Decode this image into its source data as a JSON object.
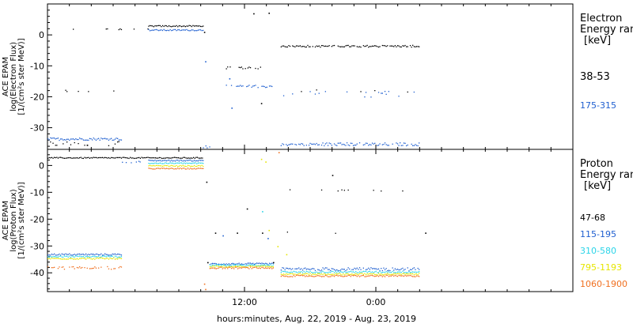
{
  "chart_data": [
    {
      "type": "scatter",
      "panel": "electron",
      "ylabel_lines": [
        "ACE EPAM",
        "log(Electron Flux)",
        "[1/(cm²s ster MeV)]"
      ],
      "ylim": [
        -37,
        10
      ],
      "yticks": [
        0,
        -10,
        -20,
        -30
      ],
      "ytick_labels": [
        "0",
        "-10",
        "-20",
        "-30"
      ],
      "legend": {
        "title_lines": [
          "Electron",
          "Energy ran",
          "[keV]"
        ],
        "entries": [
          {
            "label": "38-53",
            "color": "#000000"
          },
          {
            "label": "175-315",
            "color": "#1f5fd0"
          }
        ]
      },
      "segments": [
        {
          "series": 0,
          "x": [
            0.0,
            9.2
          ],
          "y": 2,
          "density": 0.14,
          "spread": 0.3
        },
        {
          "series": 0,
          "x": [
            0.0,
            6.8
          ],
          "y": -18,
          "density": 0.12,
          "spread": 0.3
        },
        {
          "series": 0,
          "x": [
            0.0,
            6.8
          ],
          "y": -35,
          "density": 0.3,
          "spread": 0.7
        },
        {
          "series": 0,
          "x": [
            9.2,
            14.2
          ],
          "y": 3,
          "density": 1.0,
          "spread": 0.2
        },
        {
          "series": 0,
          "x": [
            16.3,
            19.6
          ],
          "y": -10.5,
          "density": 0.6,
          "spread": 0.3
        },
        {
          "series": 0,
          "x": [
            21.3,
            34.0
          ],
          "y": -3.5,
          "density": 0.9,
          "spread": 0.3
        },
        {
          "series": 0,
          "x": [
            21.3,
            34.0
          ],
          "y": -18,
          "density": 0.08,
          "spread": 0.4
        },
        {
          "series": 1,
          "x": [
            0.0,
            6.8
          ],
          "y": -33.5,
          "density": 1.0,
          "spread": 0.4
        },
        {
          "series": 1,
          "x": [
            9.2,
            14.2
          ],
          "y": 1.7,
          "density": 1.0,
          "spread": 0.2
        },
        {
          "series": 1,
          "x": [
            14.2,
            14.8
          ],
          "y": -36,
          "density": 0.8,
          "spread": 0.4
        },
        {
          "series": 1,
          "x": [
            16.3,
            20.6
          ],
          "y": -16.5,
          "density": 0.7,
          "spread": 0.4
        },
        {
          "series": 1,
          "x": [
            21.3,
            34.0
          ],
          "y": -35.2,
          "density": 0.85,
          "spread": 0.5
        },
        {
          "series": 1,
          "x": [
            21.3,
            34.0
          ],
          "y": -19,
          "density": 0.1,
          "spread": 1.0
        }
      ],
      "points": [
        {
          "series": 0,
          "x": 18.8,
          "y": 7
        },
        {
          "series": 0,
          "x": 20.2,
          "y": 7.2
        },
        {
          "series": 0,
          "x": 19.5,
          "y": -22
        },
        {
          "series": 1,
          "x": 16.6,
          "y": -14
        },
        {
          "series": 1,
          "x": 16.8,
          "y": -23.5
        },
        {
          "series": 1,
          "x": 14.4,
          "y": -8.5
        },
        {
          "series": 0,
          "x": 3.6,
          "y": -35.5
        },
        {
          "series": 0,
          "x": 14.3,
          "y": 1
        }
      ]
    },
    {
      "type": "scatter",
      "panel": "proton",
      "ylabel_lines": [
        "ACE EPAM",
        "log(Proton Flux)",
        "[1/(cm²s ster MeV)]"
      ],
      "ylim": [
        -47,
        6
      ],
      "yticks": [
        0,
        -10,
        -20,
        -30,
        -40
      ],
      "ytick_labels": [
        "0",
        "-10",
        "-20",
        "-30",
        "-40"
      ],
      "legend": {
        "title_lines": [
          "Proton",
          "Energy ran",
          "[keV]"
        ],
        "entries": [
          {
            "label": "47-68",
            "color": "#000000"
          },
          {
            "label": "115-195",
            "color": "#1f5fd0"
          },
          {
            "label": "310-580",
            "color": "#2ad4e8"
          },
          {
            "label": "795-1193",
            "color": "#e6e600"
          },
          {
            "label": "1060-1900",
            "color": "#f07020"
          }
        ]
      },
      "segments": [
        {
          "series": 0,
          "x": [
            0.0,
            14.2
          ],
          "y": 3,
          "density": 1.0,
          "spread": 0.2
        },
        {
          "series": 1,
          "x": [
            0.0,
            6.8
          ],
          "y": -33,
          "density": 1.0,
          "spread": 0.3
        },
        {
          "series": 1,
          "x": [
            6.8,
            9.2
          ],
          "y": 1.5,
          "density": 0.12,
          "spread": 0.3
        },
        {
          "series": 1,
          "x": [
            9.2,
            14.2
          ],
          "y": 2,
          "density": 1.0,
          "spread": 0.2
        },
        {
          "series": 2,
          "x": [
            0.0,
            6.8
          ],
          "y": -33.8,
          "density": 1.0,
          "spread": 0.3
        },
        {
          "series": 2,
          "x": [
            9.2,
            14.2
          ],
          "y": 1,
          "density": 1.0,
          "spread": 0.2
        },
        {
          "series": 3,
          "x": [
            0.0,
            6.8
          ],
          "y": -34.5,
          "density": 1.0,
          "spread": 0.3
        },
        {
          "series": 3,
          "x": [
            9.2,
            14.2
          ],
          "y": 0,
          "density": 1.0,
          "spread": 0.2
        },
        {
          "series": 4,
          "x": [
            0.0,
            6.8
          ],
          "y": -38,
          "density": 0.6,
          "spread": 0.5
        },
        {
          "series": 4,
          "x": [
            9.2,
            14.2
          ],
          "y": -1,
          "density": 1.0,
          "spread": 0.2
        },
        {
          "series": 1,
          "x": [
            14.8,
            20.6
          ],
          "y": -36.5,
          "density": 1.0,
          "spread": 0.3
        },
        {
          "series": 2,
          "x": [
            14.8,
            20.6
          ],
          "y": -37,
          "density": 1.0,
          "spread": 0.3
        },
        {
          "series": 3,
          "x": [
            14.8,
            20.6
          ],
          "y": -37.5,
          "density": 1.0,
          "spread": 0.3
        },
        {
          "series": 4,
          "x": [
            14.8,
            20.6
          ],
          "y": -38,
          "density": 1.0,
          "spread": 0.3
        },
        {
          "series": 1,
          "x": [
            21.3,
            34.0
          ],
          "y": -38.5,
          "density": 0.9,
          "spread": 0.6
        },
        {
          "series": 2,
          "x": [
            21.3,
            34.0
          ],
          "y": -39.5,
          "density": 1.0,
          "spread": 0.3
        },
        {
          "series": 3,
          "x": [
            21.3,
            34.0
          ],
          "y": -40.3,
          "density": 1.0,
          "spread": 0.3
        },
        {
          "series": 4,
          "x": [
            21.3,
            34.0
          ],
          "y": -41,
          "density": 1.0,
          "spread": 0.3
        },
        {
          "series": 0,
          "x": [
            21.3,
            34.0
          ],
          "y": -9,
          "density": 0.09,
          "spread": 0.4
        },
        {
          "series": 0,
          "x": [
            21.3,
            34.0
          ],
          "y": -25,
          "density": 0.04,
          "spread": 0.4
        }
      ],
      "points": [
        {
          "series": 0,
          "x": 14.5,
          "y": -6
        },
        {
          "series": 0,
          "x": 14.6,
          "y": -36
        },
        {
          "series": 0,
          "x": 15.3,
          "y": -25
        },
        {
          "series": 0,
          "x": 17.3,
          "y": -25
        },
        {
          "series": 0,
          "x": 19.6,
          "y": -25
        },
        {
          "series": 0,
          "x": 18.2,
          "y": -16
        },
        {
          "series": 0,
          "x": 20.6,
          "y": -36
        },
        {
          "series": 0,
          "x": 26.0,
          "y": -3.5
        },
        {
          "series": 1,
          "x": 16.0,
          "y": -26
        },
        {
          "series": 1,
          "x": 20.1,
          "y": -27
        },
        {
          "series": 2,
          "x": 19.6,
          "y": -17
        },
        {
          "series": 3,
          "x": 19.5,
          "y": 2.5
        },
        {
          "series": 3,
          "x": 19.9,
          "y": 1.5
        },
        {
          "series": 3,
          "x": 20.2,
          "y": -24
        },
        {
          "series": 3,
          "x": 21.0,
          "y": -30
        },
        {
          "series": 3,
          "x": 21.8,
          "y": -33
        },
        {
          "series": 4,
          "x": 21.1,
          "y": 5
        },
        {
          "series": 4,
          "x": 14.3,
          "y": -44
        },
        {
          "series": 4,
          "x": 14.4,
          "y": -46
        },
        {
          "series": 0,
          "x": 34.5,
          "y": -25
        }
      ]
    }
  ],
  "x_axis": {
    "xlim": [
      0,
      48
    ],
    "ticks": [
      {
        "x": 18,
        "label": "12:00"
      },
      {
        "x": 30,
        "label": "0:00"
      }
    ],
    "minor_every": 2,
    "title": "hours:minutes, Aug. 22, 2019 - Aug. 23, 2019"
  }
}
